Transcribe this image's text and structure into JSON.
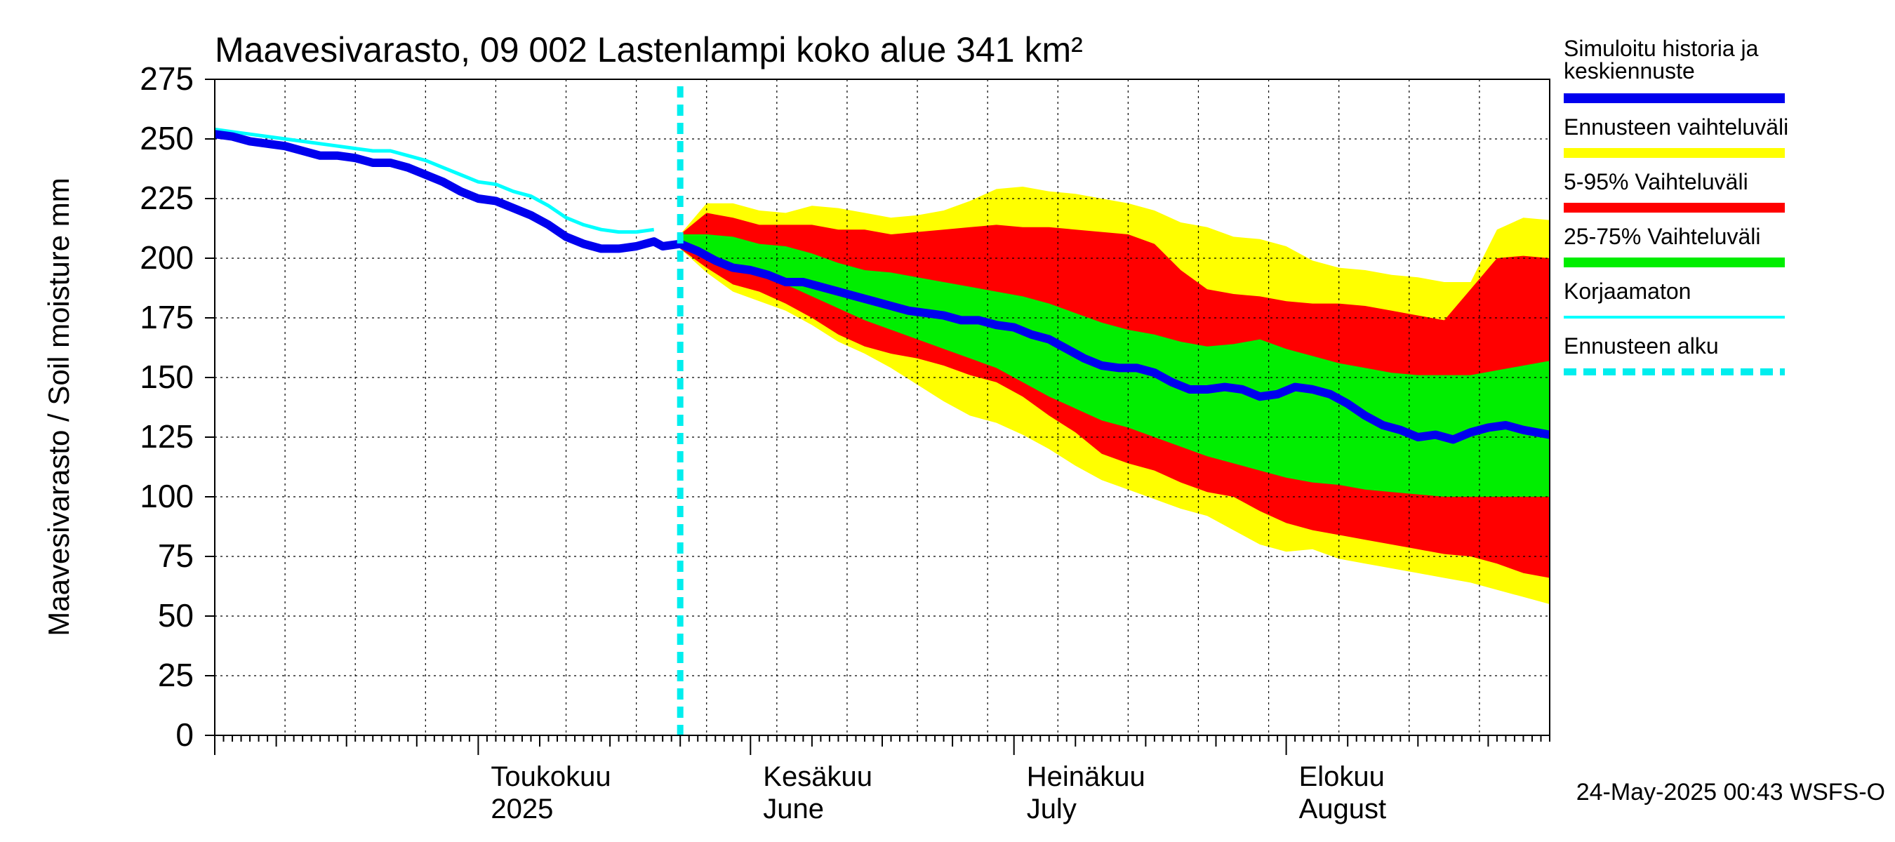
{
  "chart_data": {
    "type": "area",
    "title": "Maavesivarasto, 09 002 Lastenlampi koko alue 341 km²",
    "ylabel": "Maavesivarasto / Soil moisture   mm",
    "timestamp": "24-May-2025 00:43 WSFS-O",
    "ylim": [
      0,
      275
    ],
    "yticks": [
      0,
      25,
      50,
      75,
      100,
      125,
      150,
      175,
      200,
      225,
      250,
      275
    ],
    "x_domain": [
      "2025-04-01",
      "2025-08-31"
    ],
    "forecast_start": "2025-05-24",
    "x_labels": [
      {
        "date": "2025-05-01",
        "fi": "Toukokuu",
        "en": "2025"
      },
      {
        "date": "2025-06-01",
        "fi": "Kesäkuu",
        "en": "June"
      },
      {
        "date": "2025-07-01",
        "fi": "Heinäkuu",
        "en": "July"
      },
      {
        "date": "2025-08-01",
        "fi": "Elokuu",
        "en": "August"
      }
    ],
    "legend": [
      {
        "label": "Simuloitu historia ja",
        "label2": "keskiennuste",
        "color": "#0000ee",
        "style": "thick"
      },
      {
        "label": "Ennusteen vaihteluväli",
        "color": "#ffff00",
        "style": "band"
      },
      {
        "label": "5-95% Vaihteluväli",
        "color": "#ff0000",
        "style": "band"
      },
      {
        "label": "25-75% Vaihteluväli",
        "color": "#00ee00",
        "style": "band"
      },
      {
        "label": "Korjaamaton",
        "color": "#00ffff",
        "style": "thin"
      },
      {
        "label": "Ennusteen alku",
        "color": "#00eeee",
        "style": "dashed"
      }
    ],
    "series": {
      "simulated_history": {
        "dates": [
          "2025-04-01",
          "2025-04-03",
          "2025-04-05",
          "2025-04-07",
          "2025-04-09",
          "2025-04-11",
          "2025-04-13",
          "2025-04-15",
          "2025-04-17",
          "2025-04-19",
          "2025-04-21",
          "2025-04-23",
          "2025-04-25",
          "2025-04-27",
          "2025-04-29",
          "2025-05-01",
          "2025-05-03",
          "2025-05-05",
          "2025-05-07",
          "2025-05-09",
          "2025-05-11",
          "2025-05-13",
          "2025-05-15",
          "2025-05-17",
          "2025-05-19",
          "2025-05-21",
          "2025-05-22",
          "2025-05-24"
        ],
        "values": [
          252,
          251,
          249,
          248,
          247,
          245,
          243,
          243,
          242,
          240,
          240,
          238,
          235,
          232,
          228,
          225,
          224,
          221,
          218,
          214,
          209,
          206,
          204,
          204,
          205,
          207,
          205,
          206
        ]
      },
      "uncorrected": {
        "dates": [
          "2025-04-01",
          "2025-04-03",
          "2025-04-05",
          "2025-04-07",
          "2025-04-09",
          "2025-04-11",
          "2025-04-13",
          "2025-04-15",
          "2025-04-17",
          "2025-04-19",
          "2025-04-21",
          "2025-04-23",
          "2025-04-25",
          "2025-04-27",
          "2025-04-29",
          "2025-05-01",
          "2025-05-03",
          "2025-05-05",
          "2025-05-07",
          "2025-05-09",
          "2025-05-11",
          "2025-05-13",
          "2025-05-15",
          "2025-05-17",
          "2025-05-19",
          "2025-05-21"
        ],
        "values": [
          254,
          253,
          252,
          251,
          250,
          249,
          248,
          247,
          246,
          245,
          245,
          243,
          241,
          238,
          235,
          232,
          231,
          228,
          226,
          222,
          217,
          214,
          212,
          211,
          211,
          212
        ]
      },
      "median_forecast": {
        "dates": [
          "2025-05-24",
          "2025-05-26",
          "2025-05-28",
          "2025-05-30",
          "2025-06-01",
          "2025-06-03",
          "2025-06-05",
          "2025-06-07",
          "2025-06-09",
          "2025-06-11",
          "2025-06-13",
          "2025-06-15",
          "2025-06-17",
          "2025-06-19",
          "2025-06-21",
          "2025-06-23",
          "2025-06-25",
          "2025-06-27",
          "2025-06-29",
          "2025-07-01",
          "2025-07-03",
          "2025-07-05",
          "2025-07-07",
          "2025-07-09",
          "2025-07-11",
          "2025-07-13",
          "2025-07-15",
          "2025-07-17",
          "2025-07-19",
          "2025-07-21",
          "2025-07-23",
          "2025-07-25",
          "2025-07-27",
          "2025-07-29",
          "2025-07-31",
          "2025-08-02",
          "2025-08-04",
          "2025-08-06",
          "2025-08-08",
          "2025-08-10",
          "2025-08-12",
          "2025-08-14",
          "2025-08-16",
          "2025-08-18",
          "2025-08-20",
          "2025-08-22",
          "2025-08-24",
          "2025-08-26",
          "2025-08-28",
          "2025-08-31"
        ],
        "values": [
          206,
          203,
          199,
          196,
          195,
          193,
          190,
          190,
          188,
          186,
          184,
          182,
          180,
          178,
          177,
          176,
          174,
          174,
          172,
          171,
          168,
          166,
          162,
          158,
          155,
          154,
          154,
          152,
          148,
          145,
          145,
          146,
          145,
          142,
          143,
          146,
          145,
          143,
          139,
          134,
          130,
          128,
          125,
          126,
          124,
          127,
          129,
          130,
          128,
          126
        ]
      },
      "band_dates": [
        "2025-05-24",
        "2025-05-27",
        "2025-05-30",
        "2025-06-02",
        "2025-06-05",
        "2025-06-08",
        "2025-06-11",
        "2025-06-14",
        "2025-06-17",
        "2025-06-20",
        "2025-06-23",
        "2025-06-26",
        "2025-06-29",
        "2025-07-02",
        "2025-07-05",
        "2025-07-08",
        "2025-07-11",
        "2025-07-14",
        "2025-07-17",
        "2025-07-20",
        "2025-07-23",
        "2025-07-26",
        "2025-07-29",
        "2025-08-01",
        "2025-08-04",
        "2025-08-07",
        "2025-08-10",
        "2025-08-13",
        "2025-08-16",
        "2025-08-19",
        "2025-08-22",
        "2025-08-25",
        "2025-08-28",
        "2025-08-31"
      ],
      "range_min": [
        204,
        194,
        186,
        182,
        178,
        172,
        165,
        160,
        154,
        147,
        140,
        134,
        131,
        126,
        120,
        113,
        107,
        103,
        99,
        95,
        92,
        86,
        80,
        77,
        78,
        74,
        72,
        70,
        68,
        66,
        64,
        61,
        58,
        55
      ],
      "range_max": [
        210,
        223,
        223,
        220,
        219,
        222,
        221,
        219,
        217,
        218,
        220,
        224,
        229,
        230,
        228,
        227,
        225,
        223,
        220,
        215,
        213,
        209,
        208,
        205,
        199,
        196,
        195,
        193,
        192,
        190,
        190,
        212,
        217,
        216
      ],
      "p5": [
        204,
        196,
        189,
        186,
        181,
        175,
        168,
        163,
        160,
        158,
        155,
        151,
        148,
        142,
        134,
        127,
        118,
        114,
        111,
        106,
        102,
        100,
        94,
        89,
        86,
        84,
        82,
        80,
        78,
        76,
        75,
        72,
        68,
        66
      ],
      "p95": [
        210,
        219,
        217,
        214,
        214,
        214,
        212,
        212,
        210,
        211,
        212,
        213,
        214,
        213,
        213,
        212,
        211,
        210,
        206,
        195,
        187,
        185,
        184,
        182,
        181,
        181,
        180,
        178,
        176,
        174,
        187,
        200,
        201,
        200
      ],
      "p25": [
        205,
        201,
        197,
        193,
        189,
        184,
        179,
        174,
        170,
        166,
        162,
        158,
        154,
        148,
        142,
        137,
        132,
        129,
        125,
        121,
        117,
        114,
        111,
        108,
        106,
        105,
        103,
        102,
        101,
        100,
        100,
        100,
        100,
        100
      ],
      "p75": [
        210,
        210,
        209,
        206,
        205,
        202,
        198,
        195,
        194,
        192,
        190,
        188,
        186,
        184,
        181,
        177,
        173,
        170,
        168,
        165,
        163,
        164,
        166,
        162,
        159,
        156,
        154,
        152,
        151,
        151,
        151,
        153,
        155,
        157
      ]
    }
  }
}
